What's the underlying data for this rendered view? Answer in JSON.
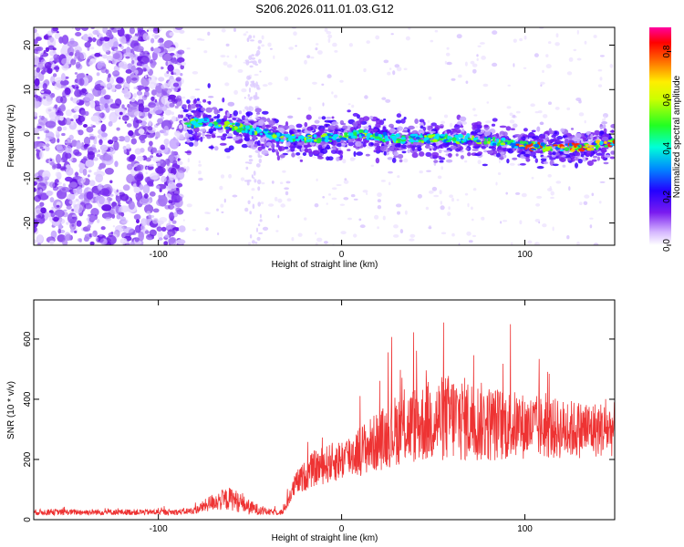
{
  "title": "S206.2026.011.01.03.G12",
  "chart_data": [
    {
      "type": "heatmap",
      "xlabel": "Height of straight line (km)",
      "ylabel": "Frequency (Hz)",
      "xlim": [
        -168,
        149
      ],
      "ylim": [
        -25,
        24
      ],
      "xticks": [
        -100,
        0,
        100
      ],
      "yticks": [
        -20,
        -10,
        0,
        10,
        20
      ],
      "colorbar": {
        "label": "Normalized spectral amplitude",
        "range": [
          0.0,
          0.9
        ],
        "ticks": [
          0.0,
          0.2,
          0.4,
          0.6,
          0.8
        ]
      },
      "ridge": {
        "description_points_x": [
          -85,
          -75,
          -50,
          -30,
          -10,
          10,
          30,
          50,
          70,
          90,
          110,
          130,
          149
        ],
        "freq_hz": [
          2,
          3,
          1,
          -1,
          -1,
          0,
          -1,
          -1,
          -1,
          -2,
          -3,
          -3,
          -2
        ]
      },
      "noise_onset_x": -87
    },
    {
      "type": "line",
      "xlabel": "Height of straight line (km)",
      "ylabel": "SNR (10 * v/v)",
      "xlim": [
        -168,
        149
      ],
      "ylim": [
        0,
        730
      ],
      "xticks": [
        -100,
        0,
        100
      ],
      "yticks": [
        0,
        200,
        400,
        600
      ],
      "color": "#ee3333",
      "profile": {
        "x": [
          -168,
          -90,
          -80,
          -70,
          -60,
          -50,
          -40,
          -32,
          -25,
          -15,
          0,
          20,
          30,
          50,
          60,
          70,
          80,
          100,
          120,
          149
        ],
        "mean": [
          25,
          25,
          30,
          60,
          70,
          40,
          25,
          25,
          120,
          170,
          200,
          260,
          300,
          330,
          340,
          330,
          320,
          310,
          300,
          300
        ],
        "spread": [
          10,
          10,
          12,
          30,
          40,
          25,
          10,
          10,
          40,
          60,
          70,
          100,
          120,
          140,
          150,
          140,
          130,
          110,
          100,
          90
        ]
      }
    }
  ]
}
